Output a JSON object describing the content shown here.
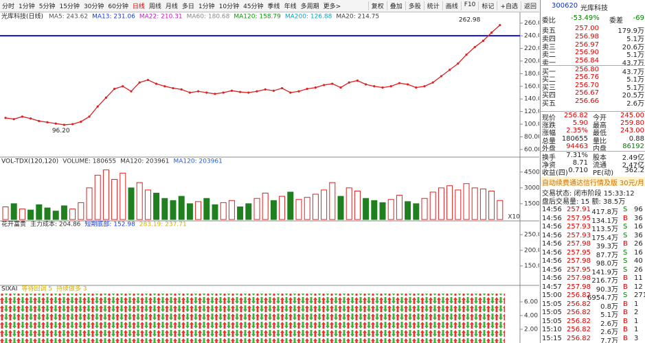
{
  "toolbar": {
    "periods": [
      "分时",
      "1分钟",
      "5分钟",
      "15分钟",
      "30分钟",
      "60分钟",
      "日线",
      "周线",
      "月线",
      "多日",
      "1分钟",
      "10分钟",
      "45分钟",
      "季线",
      "年线",
      "多周期",
      "更多>"
    ],
    "buttons": [
      "复权",
      "叠加",
      "多股",
      "统计",
      "画线",
      "F10",
      "标记",
      "+自选",
      "返回"
    ]
  },
  "chart_title": "光库科技(日线)",
  "ma_legend": [
    {
      "label": "MA5: 243.62",
      "color": "#555555"
    },
    {
      "label": "MA13: 231.06",
      "color": "#2040d0"
    },
    {
      "label": "MA22: 210.31",
      "color": "#c020c0"
    },
    {
      "label": "MA60: 180.68",
      "color": "#888888"
    },
    {
      "label": "MA120: 158.79",
      "color": "#109010"
    },
    {
      "label": "MA200: 126.88",
      "color": "#10a0c0"
    },
    {
      "label": "MA20: 214.75",
      "color": "#404040"
    }
  ],
  "chart_data": [
    {
      "type": "line",
      "color": "#e02020",
      "values": [
        110,
        108,
        112,
        109,
        105,
        103,
        101,
        99,
        100,
        104,
        112,
        128,
        142,
        156,
        160,
        152,
        166,
        170,
        164,
        160,
        157,
        155,
        150,
        152,
        150,
        148,
        150,
        153,
        151,
        150,
        152,
        155,
        153,
        157,
        150,
        152,
        156,
        158,
        162,
        164,
        158,
        166,
        169,
        163,
        160,
        158,
        160,
        165,
        163,
        158,
        160,
        166,
        176,
        186,
        196,
        210,
        222,
        232,
        245,
        256.82
      ],
      "ylim": [
        49,
        264
      ],
      "yticks": [
        {
          "value": 260,
          "label": "260.0"
        },
        {
          "value": 240,
          "label": "240.0"
        },
        {
          "value": 220,
          "label": "220.0"
        },
        {
          "value": 200,
          "label": "200.0"
        },
        {
          "value": 180,
          "label": "180.0"
        },
        {
          "value": 160,
          "label": "160.0"
        },
        {
          "value": 140,
          "label": "140.0"
        },
        {
          "value": 120,
          "label": "120.0"
        },
        {
          "value": 100,
          "label": "100.0"
        },
        {
          "value": 80,
          "label": "80.00"
        },
        {
          "value": 60,
          "label": "60.00"
        }
      ],
      "annotations": [
        {
          "value": 262.98,
          "index": 57
        },
        {
          "value": 96.2,
          "label": "96.20",
          "index": 8
        }
      ],
      "hline": 240,
      "hline_color": "#1010c0"
    },
    {
      "type": "bar",
      "title": "VOL-TDX(120,120)",
      "legend": [
        {
          "label": "VOLUME: 180655",
          "color": "#333333"
        },
        {
          "label": "MA120: 203961",
          "color": "#333333"
        },
        {
          "label": "MA120: 203961",
          "color": "#2060e0"
        }
      ],
      "values": [
        12000,
        15000,
        10000,
        9000,
        14000,
        11000,
        8000,
        13000,
        10000,
        16000,
        30000,
        42000,
        47000,
        38000,
        44000,
        30000,
        35000,
        28000,
        25000,
        20000,
        18000,
        22000,
        15000,
        17000,
        20000,
        14000,
        16000,
        18000,
        12000,
        15000,
        20000,
        25000,
        18000,
        22000,
        26000,
        19000,
        21000,
        24000,
        28000,
        35000,
        22000,
        30000,
        27000,
        20000,
        18000,
        16000,
        19000,
        23000,
        17000,
        15000,
        20000,
        26000,
        30000,
        32000,
        28000,
        34000,
        30000,
        29000,
        27000,
        18066
      ],
      "up_color": "#e02020",
      "down_color": "#208020",
      "ylim": [
        0,
        52000
      ],
      "yticks": [
        45000,
        30000,
        15000
      ],
      "scale_label": "X10"
    },
    {
      "type": "indicator",
      "title": "花开富贵",
      "legend": [
        {
          "label": "主力成本: 204.86",
          "color": "#333333"
        },
        {
          "label": "短期底部: 152.98",
          "color": "#2040e0"
        },
        {
          "label": "283.19: 237.71",
          "color": "#d0b000"
        }
      ],
      "ylim": [
        90,
        270
      ],
      "yticks": [
        {
          "value": 250,
          "label": "250.0"
        },
        {
          "value": 200,
          "label": "200.0"
        },
        {
          "value": 150,
          "label": "150.0"
        }
      ]
    },
    {
      "type": "indicator",
      "title": "SIXAI",
      "legend": [
        {
          "label": "等待回调 5",
          "color": "#d0b000"
        },
        {
          "label": "持续做多 3",
          "color": "#d0b000"
        }
      ],
      "ylim": [
        0,
        7.2
      ],
      "yticks": [
        {
          "value": 6,
          "label": "6.00"
        },
        {
          "value": 4,
          "label": "4.00"
        },
        {
          "value": 2,
          "label": "2.00"
        }
      ]
    }
  ],
  "quote": {
    "code": "300620",
    "name": "光库科技",
    "weibi": [
      "委比",
      "-53.49%",
      "委差",
      "-69"
    ],
    "book": [
      [
        "卖五",
        "257.00",
        "179.9万"
      ],
      [
        "卖四",
        "256.98",
        "5.1万"
      ],
      [
        "卖三",
        "256.97",
        "20.6万"
      ],
      [
        "卖二",
        "256.90",
        "5.1万"
      ],
      [
        "卖一",
        "256.84",
        "43.7万"
      ],
      [
        "买一",
        "256.80",
        "43.7万"
      ],
      [
        "买二",
        "256.76",
        "5.1万"
      ],
      [
        "买三",
        "256.70",
        "5.1万"
      ],
      [
        "买四",
        "256.67",
        "20.5万"
      ],
      [
        "买五",
        "256.66",
        "2.6万"
      ]
    ],
    "stats": [
      [
        "现价",
        "256.82",
        "今开",
        "245.00"
      ],
      [
        "涨跌",
        "5.90",
        "最高",
        "259.80"
      ],
      [
        "涨幅",
        "2.35%",
        "最低",
        "243.00"
      ],
      [
        "总量",
        "180655",
        "量比",
        "0.88"
      ],
      [
        "外盘",
        "94463",
        "内盘",
        "86192"
      ],
      [
        "换手",
        "7.31%",
        "股本",
        "2.49亿"
      ],
      [
        "净资",
        "8.71",
        "流通",
        "2.47亿"
      ],
      [
        "收益(四)",
        "0.710",
        "PE(动)",
        "362.2"
      ]
    ],
    "ad": [
      "自动续费通达信行情及版",
      "30元/月"
    ],
    "status": [
      "交易状态: 闭市阶段 15:33:12",
      "盘后交易量: 15 额: 38.5万"
    ],
    "trades": [
      [
        "14:56",
        "257.91",
        "417.8万",
        "S",
        "96"
      ],
      [
        "14:56",
        "257.95",
        "134.1万",
        "B",
        "36"
      ],
      [
        "14:56",
        "257.93",
        "113.5万",
        "S",
        "16"
      ],
      [
        "14:56",
        "257.93",
        "175.4万",
        "S",
        "36"
      ],
      [
        "14:56",
        "257.98",
        "39.3万",
        "B",
        "26"
      ],
      [
        "14:56",
        "257.95",
        "87.7万",
        "S",
        "16"
      ],
      [
        "14:56",
        "257.98",
        "98.0万",
        "S",
        "40"
      ],
      [
        "14:56",
        "257.95",
        "141.9万",
        "S",
        "26"
      ],
      [
        "14:56",
        "257.98",
        "216.7万",
        "B",
        "11"
      ],
      [
        "14:57",
        "257.98",
        "90.3万",
        "B",
        "12"
      ],
      [
        "15:00",
        "256.82",
        "6954.7万",
        "S",
        "2711"
      ],
      [
        "15:05",
        "256.82",
        "0.8万",
        "B",
        "1"
      ],
      [
        "15:05",
        "256.82",
        "5.1万",
        "B",
        "2"
      ],
      [
        "15:05",
        "256.82",
        "2.6万",
        "B",
        "1"
      ],
      [
        "15:10",
        "256.82",
        "2.6万",
        "B",
        "1"
      ],
      [
        "15:15",
        "256.82",
        "7.7万",
        "B",
        "3"
      ]
    ]
  }
}
